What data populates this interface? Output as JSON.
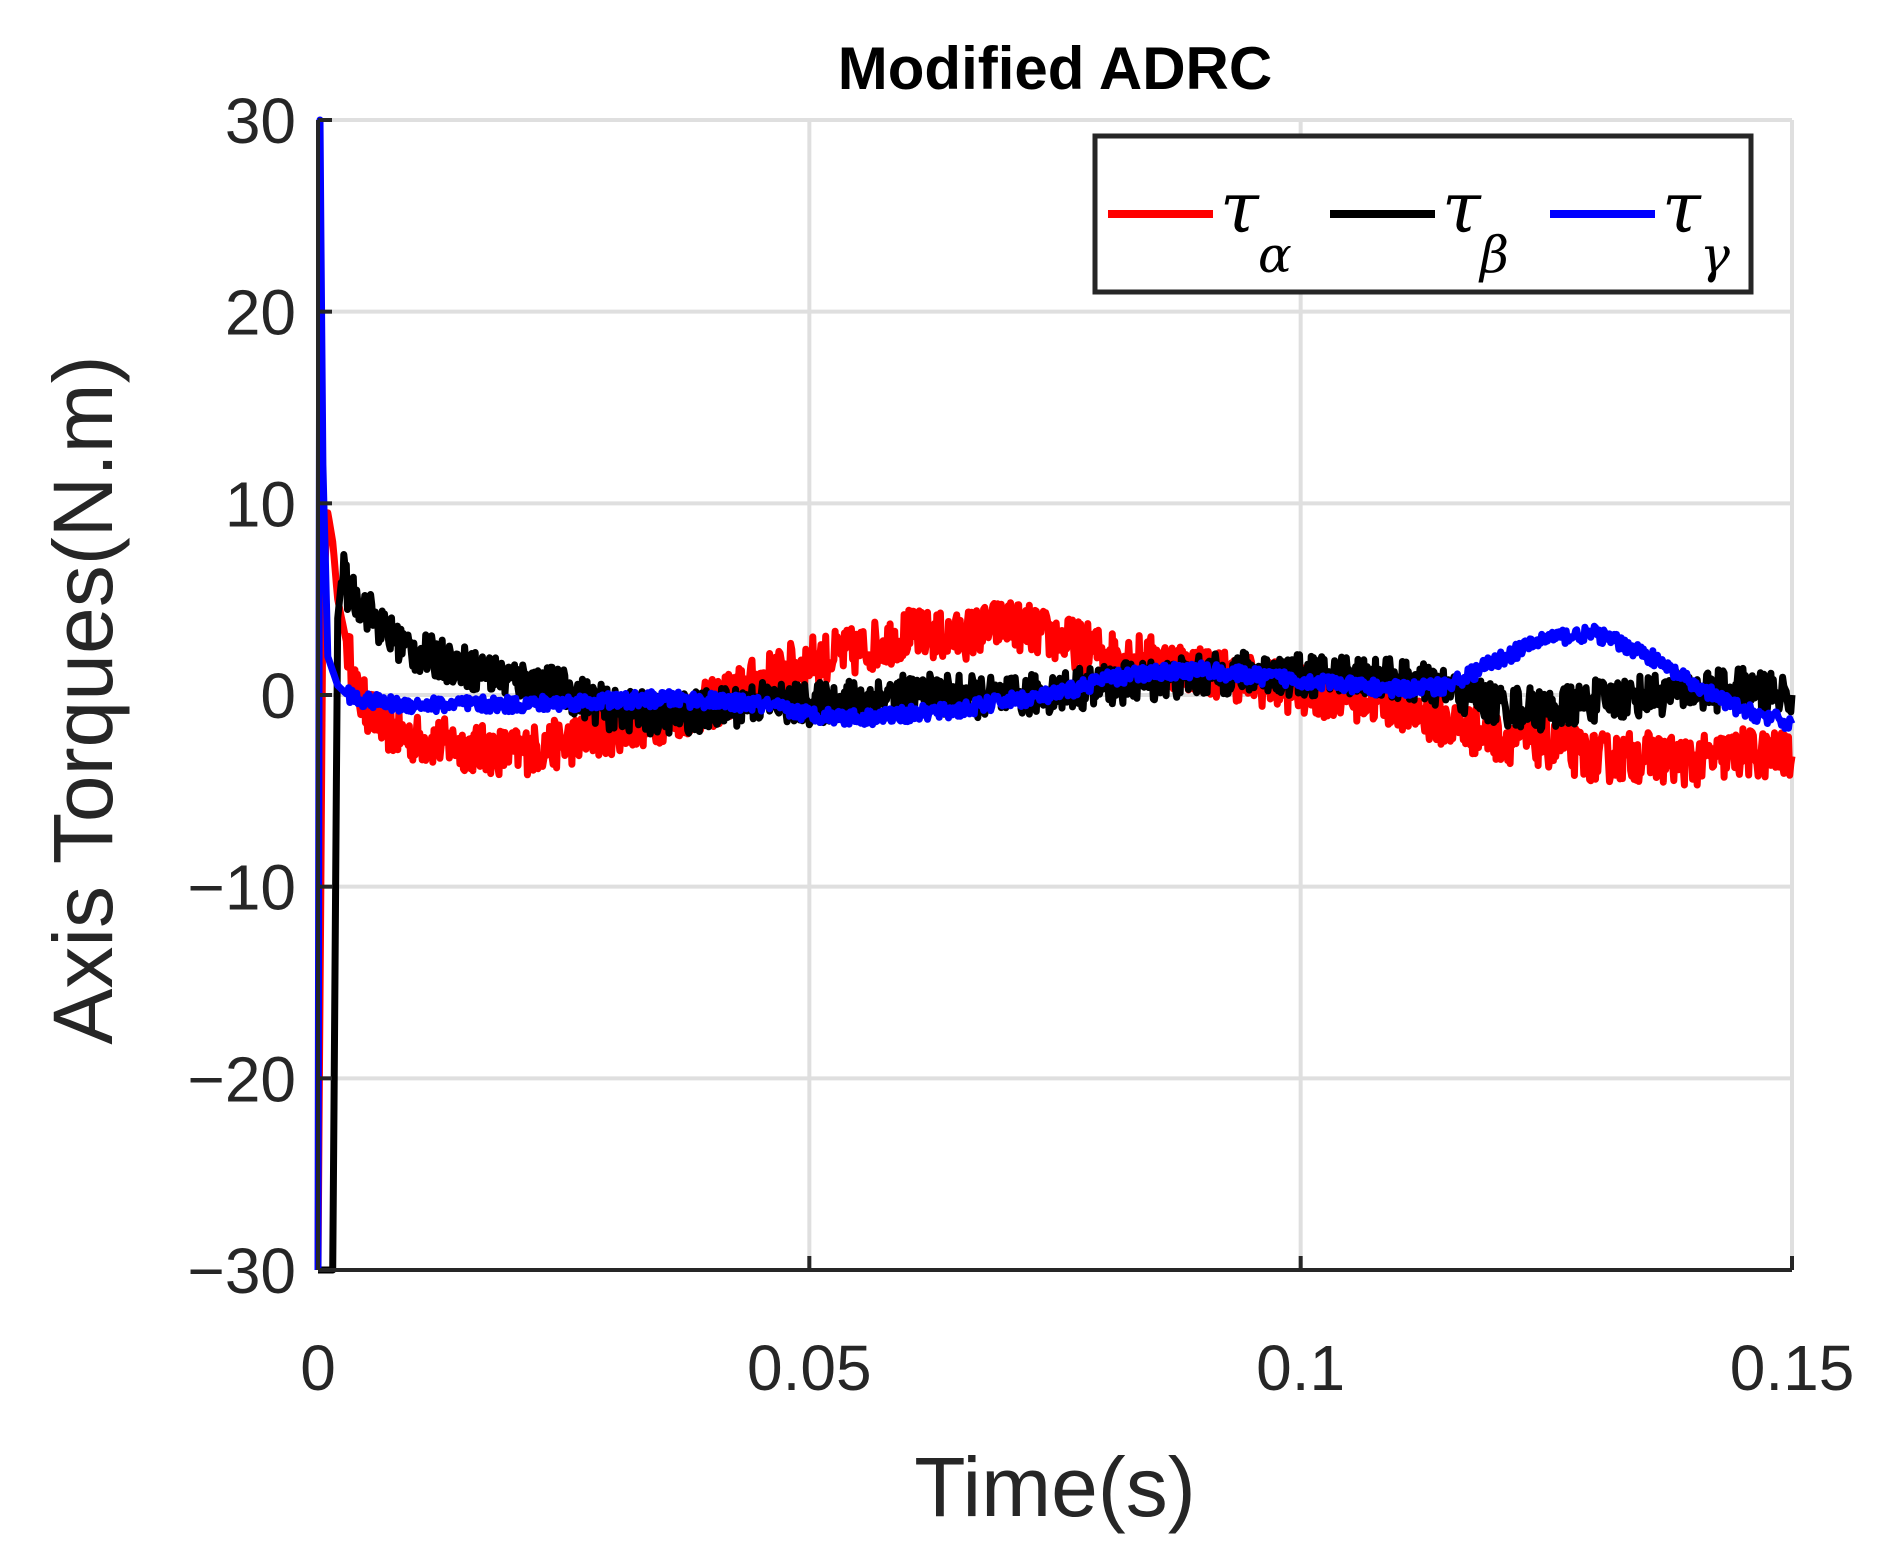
{
  "chart_data": {
    "type": "line",
    "title": "Modified ADRC",
    "xlabel": "Time(s)",
    "ylabel": "Axis Torques(N.m)",
    "xlim": [
      0,
      0.15
    ],
    "ylim": [
      -30,
      30
    ],
    "xticks": [
      0,
      0.05,
      0.1,
      0.15
    ],
    "xtick_labels": [
      "0",
      "0.05",
      "0.1",
      "0.15"
    ],
    "yticks": [
      -30,
      -20,
      -10,
      0,
      10,
      20,
      30
    ],
    "ytick_labels": [
      "−30",
      "−20",
      "−10",
      "0",
      "10",
      "20",
      "30"
    ],
    "grid": true,
    "legend_position": "top-right",
    "series": [
      {
        "name": "τ_α",
        "symbol": "τ",
        "subscript": "α",
        "color": "#ff0000",
        "noise": 1.3,
        "points": [
          [
            0,
            -30
          ],
          [
            0.0005,
            5
          ],
          [
            0.001,
            9.5
          ],
          [
            0.0015,
            8
          ],
          [
            0.002,
            5
          ],
          [
            0.003,
            2.5
          ],
          [
            0.004,
            0
          ],
          [
            0.006,
            -1.3
          ],
          [
            0.008,
            -2
          ],
          [
            0.01,
            -2.3
          ],
          [
            0.013,
            -2.5
          ],
          [
            0.016,
            -2.8
          ],
          [
            0.02,
            -3
          ],
          [
            0.025,
            -2.5
          ],
          [
            0.03,
            -1.8
          ],
          [
            0.035,
            -1.2
          ],
          [
            0.04,
            -0.5
          ],
          [
            0.045,
            0.8
          ],
          [
            0.05,
            1.8
          ],
          [
            0.055,
            2.3
          ],
          [
            0.06,
            3.2
          ],
          [
            0.065,
            3
          ],
          [
            0.07,
            3.8
          ],
          [
            0.075,
            3
          ],
          [
            0.08,
            2.2
          ],
          [
            0.085,
            1.8
          ],
          [
            0.09,
            1.3
          ],
          [
            0.095,
            0.8
          ],
          [
            0.1,
            0.2
          ],
          [
            0.105,
            0
          ],
          [
            0.11,
            -0.5
          ],
          [
            0.115,
            -1.5
          ],
          [
            0.12,
            -2.2
          ],
          [
            0.125,
            -2.5
          ],
          [
            0.13,
            -3.3
          ],
          [
            0.135,
            -3.2
          ],
          [
            0.14,
            -3.5
          ],
          [
            0.145,
            -3
          ],
          [
            0.15,
            -3.2
          ]
        ]
      },
      {
        "name": "τ_β",
        "symbol": "τ",
        "subscript": "β",
        "color": "#000000",
        "noise": 1.1,
        "points": [
          [
            0,
            -30
          ],
          [
            0.0005,
            -30
          ],
          [
            0.001,
            -30
          ],
          [
            0.0015,
            -30
          ],
          [
            0.002,
            4
          ],
          [
            0.0025,
            6.5
          ],
          [
            0.003,
            5.5
          ],
          [
            0.005,
            4.5
          ],
          [
            0.007,
            3.2
          ],
          [
            0.01,
            2.2
          ],
          [
            0.013,
            1.8
          ],
          [
            0.016,
            1.3
          ],
          [
            0.02,
            0.8
          ],
          [
            0.025,
            0.3
          ],
          [
            0.03,
            -0.8
          ],
          [
            0.035,
            -1
          ],
          [
            0.04,
            -0.8
          ],
          [
            0.045,
            -0.3
          ],
          [
            0.05,
            -0.5
          ],
          [
            0.055,
            -0.2
          ],
          [
            0.06,
            0
          ],
          [
            0.065,
            0
          ],
          [
            0.07,
            -0.2
          ],
          [
            0.075,
            0.2
          ],
          [
            0.08,
            0.5
          ],
          [
            0.085,
            0.8
          ],
          [
            0.09,
            1
          ],
          [
            0.095,
            1.2
          ],
          [
            0.1,
            1
          ],
          [
            0.105,
            1.1
          ],
          [
            0.11,
            0.8
          ],
          [
            0.115,
            0.3
          ],
          [
            0.12,
            -0.5
          ],
          [
            0.125,
            -0.8
          ],
          [
            0.13,
            -0.3
          ],
          [
            0.135,
            0
          ],
          [
            0.14,
            0.2
          ],
          [
            0.145,
            0.3
          ],
          [
            0.15,
            0
          ]
        ]
      },
      {
        "name": "τ_γ",
        "symbol": "τ",
        "subscript": "γ",
        "color": "#0000ff",
        "noise": 0.4,
        "points": [
          [
            0,
            -30
          ],
          [
            0.0002,
            30
          ],
          [
            0.0005,
            12
          ],
          [
            0.001,
            2
          ],
          [
            0.002,
            0.5
          ],
          [
            0.003,
            0
          ],
          [
            0.005,
            -0.3
          ],
          [
            0.008,
            -0.5
          ],
          [
            0.01,
            -0.5
          ],
          [
            0.015,
            -0.5
          ],
          [
            0.02,
            -0.5
          ],
          [
            0.025,
            -0.4
          ],
          [
            0.03,
            -0.3
          ],
          [
            0.035,
            -0.2
          ],
          [
            0.04,
            -0.3
          ],
          [
            0.045,
            -0.5
          ],
          [
            0.05,
            -1
          ],
          [
            0.055,
            -1.2
          ],
          [
            0.06,
            -1
          ],
          [
            0.065,
            -0.8
          ],
          [
            0.07,
            -0.3
          ],
          [
            0.075,
            0
          ],
          [
            0.08,
            0.8
          ],
          [
            0.085,
            1.2
          ],
          [
            0.09,
            1.3
          ],
          [
            0.095,
            1
          ],
          [
            0.1,
            0.8
          ],
          [
            0.105,
            0.5
          ],
          [
            0.11,
            0.3
          ],
          [
            0.115,
            0.5
          ],
          [
            0.12,
            1.8
          ],
          [
            0.125,
            3
          ],
          [
            0.13,
            3.2
          ],
          [
            0.135,
            2.2
          ],
          [
            0.14,
            0.5
          ],
          [
            0.145,
            -0.8
          ],
          [
            0.15,
            -1.5
          ]
        ]
      }
    ]
  }
}
